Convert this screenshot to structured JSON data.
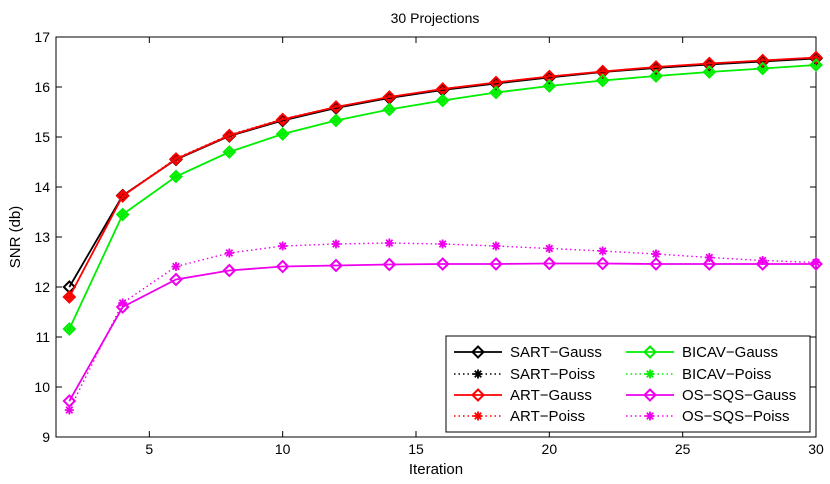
{
  "chart_data": {
    "type": "line",
    "title": "30 Projections",
    "xlabel": "Iteration",
    "ylabel": "SNR (db)",
    "xlim": [
      1.5,
      30
    ],
    "ylim": [
      9,
      17
    ],
    "xticks": [
      5,
      10,
      15,
      20,
      25,
      30
    ],
    "yticks": [
      9,
      10,
      11,
      12,
      13,
      14,
      15,
      16,
      17
    ],
    "grid": false,
    "legend_position": "bottom-right",
    "x": [
      2,
      4,
      6,
      8,
      10,
      12,
      14,
      16,
      18,
      20,
      22,
      24,
      26,
      28,
      30
    ],
    "series": [
      {
        "name": "SART−Gauss",
        "color": "#000000",
        "linestyle": "solid",
        "marker": "diamond",
        "values": [
          12.0,
          13.83,
          14.55,
          15.02,
          15.33,
          15.58,
          15.78,
          15.94,
          16.07,
          16.19,
          16.3,
          16.38,
          16.45,
          16.51,
          16.57
        ]
      },
      {
        "name": "SART−Poiss",
        "color": "#000000",
        "linestyle": "dotted",
        "marker": "star",
        "values": [
          11.8,
          13.83,
          14.57,
          15.04,
          15.36,
          15.6,
          15.8,
          15.96,
          16.09,
          16.21,
          16.31,
          16.4,
          16.47,
          16.53,
          16.59
        ]
      },
      {
        "name": "ART−Gauss",
        "color": "#ff0000",
        "linestyle": "solid",
        "marker": "diamond",
        "values": [
          11.8,
          13.82,
          14.56,
          15.03,
          15.35,
          15.6,
          15.8,
          15.96,
          16.09,
          16.21,
          16.31,
          16.4,
          16.47,
          16.53,
          16.59
        ]
      },
      {
        "name": "ART−Poiss",
        "color": "#ff0000",
        "linestyle": "dotted",
        "marker": "star",
        "values": [
          11.8,
          13.83,
          14.57,
          15.04,
          15.36,
          15.6,
          15.8,
          15.96,
          16.09,
          16.21,
          16.31,
          16.4,
          16.47,
          16.53,
          16.59
        ]
      },
      {
        "name": "BICAV−Gauss",
        "color": "#00ee00",
        "linestyle": "solid",
        "marker": "diamond",
        "values": [
          11.16,
          13.45,
          14.21,
          14.7,
          15.06,
          15.33,
          15.55,
          15.73,
          15.89,
          16.02,
          16.13,
          16.22,
          16.3,
          16.37,
          16.44
        ]
      },
      {
        "name": "BICAV−Poiss",
        "color": "#00ee00",
        "linestyle": "dotted",
        "marker": "star",
        "values": [
          11.16,
          13.45,
          14.21,
          14.7,
          15.06,
          15.33,
          15.55,
          15.73,
          15.89,
          16.02,
          16.13,
          16.22,
          16.3,
          16.37,
          16.44
        ]
      },
      {
        "name": "OS−SQS−Gauss",
        "color": "#ee00ee",
        "linestyle": "solid",
        "marker": "diamond",
        "values": [
          9.72,
          11.6,
          12.15,
          12.33,
          12.41,
          12.43,
          12.45,
          12.46,
          12.46,
          12.47,
          12.47,
          12.46,
          12.46,
          12.46,
          12.46
        ]
      },
      {
        "name": "OS−SQS−Poiss",
        "color": "#ee00ee",
        "linestyle": "dotted",
        "marker": "star",
        "values": [
          9.54,
          11.68,
          12.41,
          12.68,
          12.82,
          12.86,
          12.88,
          12.86,
          12.82,
          12.77,
          12.72,
          12.66,
          12.59,
          12.53,
          12.49
        ]
      }
    ]
  }
}
